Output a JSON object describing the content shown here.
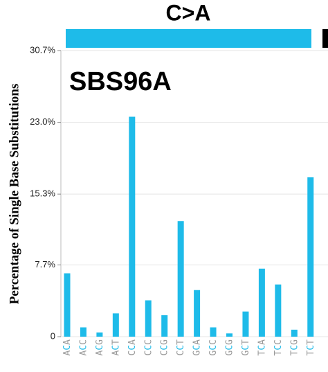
{
  "chart_data": {
    "type": "bar",
    "title": "C>A",
    "annotation": "SBS96A",
    "y_label": "Percentage of Single Base Substitutions",
    "categories": [
      "ACA",
      "ACC",
      "ACG",
      "ACT",
      "CCA",
      "CCC",
      "CCG",
      "CCT",
      "GCA",
      "GCC",
      "GCG",
      "GCT",
      "TCA",
      "TCC",
      "TCG",
      "TCT"
    ],
    "values": [
      6.8,
      1.0,
      0.45,
      2.5,
      23.6,
      3.9,
      2.3,
      12.4,
      5.0,
      1.0,
      0.35,
      2.7,
      7.3,
      5.6,
      0.75,
      17.1
    ],
    "color": "#1ebbe9",
    "ylim": [
      0,
      30.7
    ],
    "yticks": [
      {
        "value": 0,
        "label": "0"
      },
      {
        "value": 7.7,
        "label": "7.7%"
      },
      {
        "value": 15.3,
        "label": "15.3%"
      },
      {
        "value": 23.0,
        "label": "23.0%"
      },
      {
        "value": 30.7,
        "label": "30.7%"
      }
    ],
    "grid": true
  }
}
